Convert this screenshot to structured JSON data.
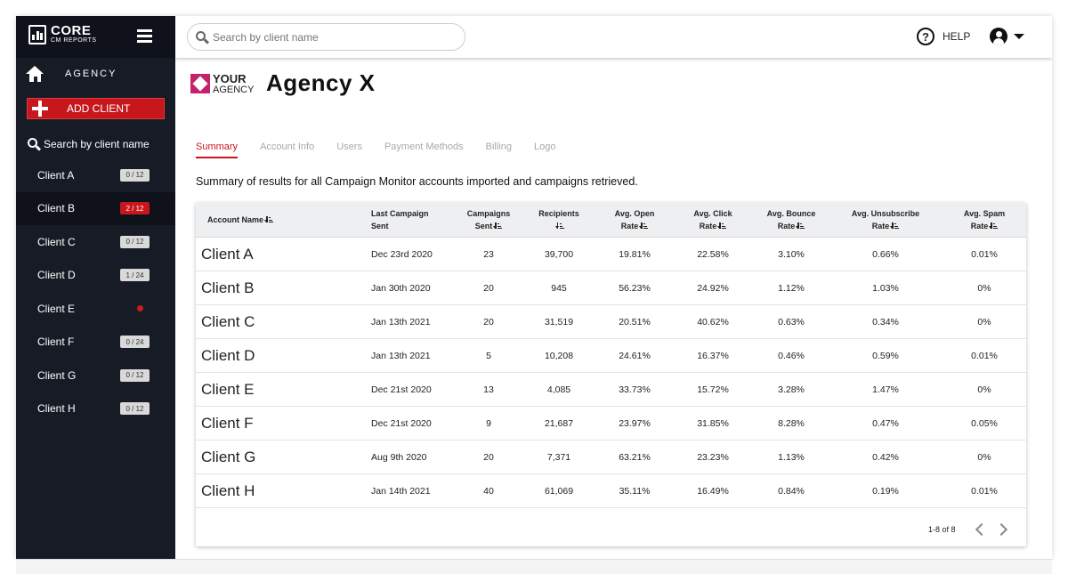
{
  "app": {
    "logo_main": "CORE",
    "logo_sub": "CM REPORTS"
  },
  "sidebar": {
    "agency_label": "AGENCY",
    "add_client_label": "ADD CLIENT",
    "search_label": "Search by client name",
    "clients": [
      {
        "name": "Client A",
        "badge": "0 / 12",
        "state": "normal"
      },
      {
        "name": "Client B",
        "badge": "2 / 12",
        "state": "alert"
      },
      {
        "name": "Client C",
        "badge": "0 / 12",
        "state": "normal"
      },
      {
        "name": "Client D",
        "badge": "1 / 24",
        "state": "normal"
      },
      {
        "name": "Client E",
        "badge": "",
        "state": "dot"
      },
      {
        "name": "Client F",
        "badge": "0 / 24",
        "state": "normal"
      },
      {
        "name": "Client G",
        "badge": "0 / 12",
        "state": "normal"
      },
      {
        "name": "Client H",
        "badge": "0 / 12",
        "state": "normal"
      }
    ]
  },
  "topbar": {
    "search_placeholder": "Search by client name",
    "help_label": "HELP"
  },
  "agency": {
    "logo_line1": "YOUR",
    "logo_line2": "AGENCY",
    "title": "Agency X"
  },
  "tabs": [
    "Summary",
    "Account Info",
    "Users",
    "Payment Methods",
    "Billing",
    "Logo"
  ],
  "summary_text": "Summary of results for all Campaign Monitor accounts imported and campaigns retrieved.",
  "table": {
    "headers": [
      {
        "line1": "Account Name",
        "line2": ""
      },
      {
        "line1": "Last Campaign",
        "line2": "Sent"
      },
      {
        "line1": "Campaigns",
        "line2": "Sent"
      },
      {
        "line1": "Recipients",
        "line2": ""
      },
      {
        "line1": "Avg. Open",
        "line2": "Rate"
      },
      {
        "line1": "Avg. Click",
        "line2": "Rate"
      },
      {
        "line1": "Avg. Bounce",
        "line2": "Rate"
      },
      {
        "line1": "Avg. Unsubscribe",
        "line2": "Rate"
      },
      {
        "line1": "Avg. Spam",
        "line2": "Rate"
      }
    ],
    "rows": [
      [
        "Client A",
        "Dec 23rd 2020",
        "23",
        "39,700",
        "19.81%",
        "22.58%",
        "3.10%",
        "0.66%",
        "0.01%"
      ],
      [
        "Client B",
        "Jan 30th 2020",
        "20",
        "945",
        "56.23%",
        "24.92%",
        "1.12%",
        "1.03%",
        "0%"
      ],
      [
        "Client C",
        "Jan 13th 2021",
        "20",
        "31,519",
        "20.51%",
        "40.62%",
        "0.63%",
        "0.34%",
        "0%"
      ],
      [
        "Client D",
        "Jan 13th 2021",
        "5",
        "10,208",
        "24.61%",
        "16.37%",
        "0.46%",
        "0.59%",
        "0.01%"
      ],
      [
        "Client E",
        "Dec 21st 2020",
        "13",
        "4,085",
        "33.73%",
        "15.72%",
        "3.28%",
        "1.47%",
        "0%"
      ],
      [
        "Client F",
        "Dec 21st 2020",
        "9",
        "21,687",
        "23.97%",
        "31.85%",
        "8.28%",
        "0.47%",
        "0.05%"
      ],
      [
        "Client G",
        "Aug 9th 2020",
        "20",
        "7,371",
        "63.21%",
        "23.23%",
        "1.13%",
        "0.42%",
        "0%"
      ],
      [
        "Client H",
        "Jan 14th 2021",
        "40",
        "61,069",
        "35.11%",
        "16.49%",
        "0.84%",
        "0.19%",
        "0.01%"
      ]
    ],
    "pagination": "1-8 of 8"
  },
  "colors": {
    "sidebar_bg": "#171b26",
    "accent_red": "#c8161d",
    "agency_pink": "#c8216b"
  },
  "icons": {
    "menu": "hamburger-icon",
    "home": "home-icon",
    "add": "plus-icon",
    "search": "search-icon",
    "help": "help-icon",
    "user": "user-icon",
    "sort": "sort-icon"
  }
}
